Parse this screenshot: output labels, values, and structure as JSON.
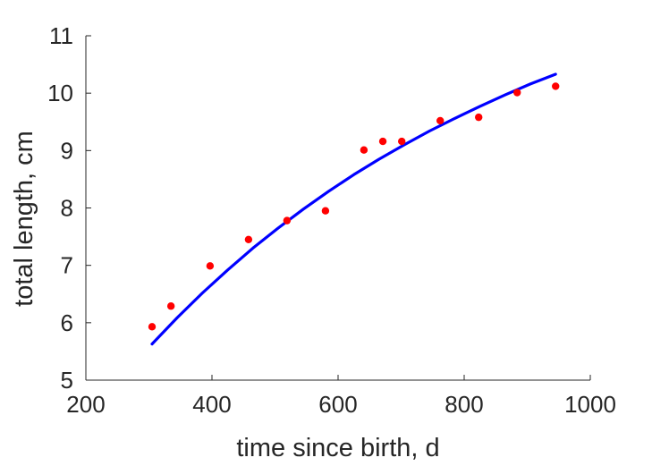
{
  "chart_data": {
    "type": "scatter",
    "xlabel": "time since birth, d",
    "ylabel": "total length, cm",
    "xlim": [
      200,
      1000
    ],
    "ylim": [
      5,
      11
    ],
    "xticks": [
      "200",
      "400",
      "600",
      "800",
      "1000"
    ],
    "yticks": [
      "5",
      "6",
      "7",
      "8",
      "9",
      "10",
      "11"
    ],
    "grid": false,
    "series": [
      {
        "kind": "points",
        "color": "#ff0000",
        "x": [
          305,
          335,
          397,
          458,
          519,
          580,
          641,
          671,
          701,
          762,
          823,
          884,
          945
        ],
        "y": [
          5.93,
          6.29,
          6.99,
          7.45,
          7.78,
          7.95,
          9.01,
          9.16,
          9.16,
          9.52,
          9.58,
          10.01,
          10.12
        ]
      },
      {
        "kind": "line",
        "color": "#0000ff",
        "x": [
          305,
          345,
          385,
          425,
          465,
          505,
          545,
          585,
          625,
          665,
          705,
          745,
          785,
          825,
          865,
          905,
          945
        ],
        "y": [
          5.63,
          6.09,
          6.52,
          6.92,
          7.3,
          7.65,
          7.98,
          8.29,
          8.58,
          8.85,
          9.1,
          9.34,
          9.56,
          9.77,
          9.97,
          10.16,
          10.33
        ]
      }
    ]
  }
}
